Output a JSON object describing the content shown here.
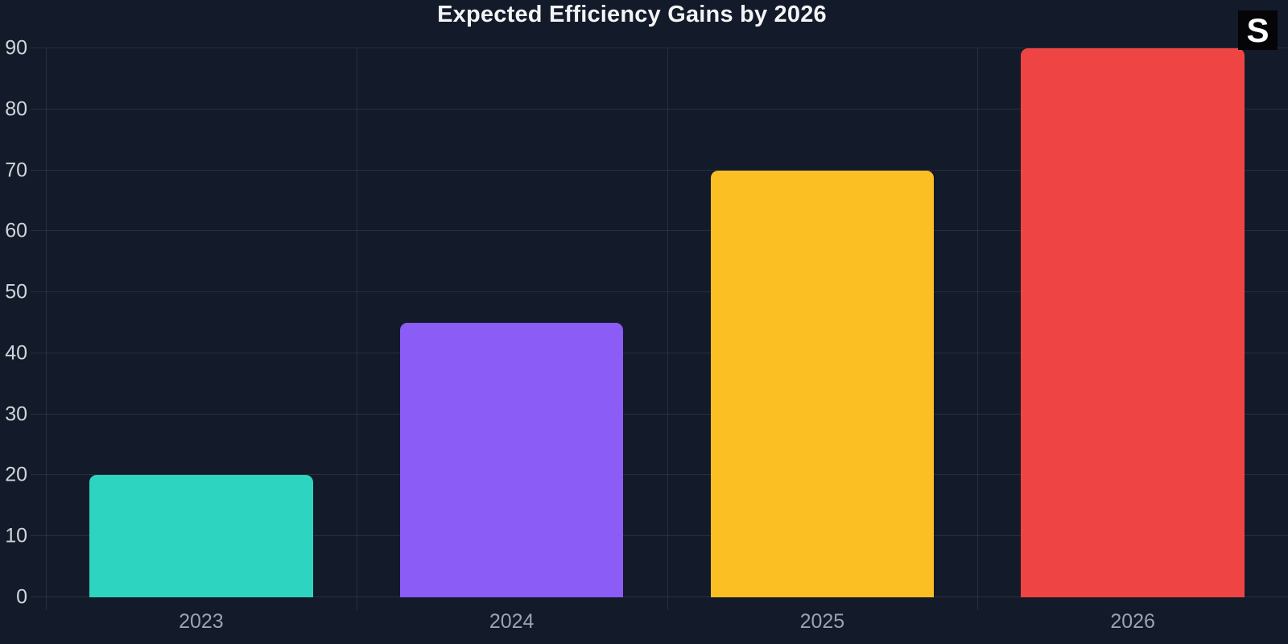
{
  "header": {
    "title": "Expected Efficiency Gains by 2026",
    "badge_label": "S"
  },
  "colors": {
    "background": "#131a29",
    "grid": "rgba(255,255,255,0.09)",
    "title_text": "#f3f4f6",
    "y_tick_text": "#d1d5db",
    "x_tick_text": "#9ca3af",
    "badge_bg": "#050508",
    "badge_text": "#ffffff"
  },
  "chart_data": {
    "type": "bar",
    "title": "Expected Efficiency Gains by 2026",
    "categories": [
      "2023",
      "2024",
      "2025",
      "2026"
    ],
    "values": [
      20,
      45,
      70,
      90
    ],
    "bar_colors": [
      "#2dd4bf",
      "#8b5cf6",
      "#fbbf24",
      "#ef4444"
    ],
    "xlabel": "",
    "ylabel": "",
    "ylim": [
      0,
      90
    ],
    "y_ticks": [
      0,
      10,
      20,
      30,
      40,
      50,
      60,
      70,
      80,
      90
    ],
    "grid": true,
    "legend": false,
    "bar_width_fraction_of_category": 0.72
  }
}
